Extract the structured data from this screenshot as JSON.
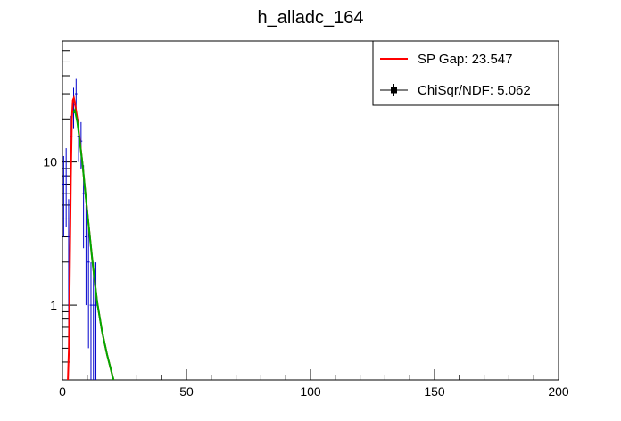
{
  "chart_data": {
    "type": "histogram",
    "title": "h_alladc_164",
    "xlabel": "",
    "ylabel": "",
    "xlim": [
      0,
      200
    ],
    "ylim": [
      0.3,
      70
    ],
    "yscale": "log",
    "x_ticks": [
      0,
      50,
      100,
      150,
      200
    ],
    "y_ticks": [
      1,
      10
    ],
    "grid": false,
    "legend": {
      "position": "top-right",
      "entries": [
        {
          "label": "SP Gap: 23.547",
          "style": "line",
          "color": "#ff0000"
        },
        {
          "label": "ChiSqr/NDF: 5.062",
          "style": "marker-line",
          "color": "#000000"
        }
      ]
    },
    "series": [
      {
        "style": "error-bars",
        "color": "#0000cc",
        "points": [
          {
            "x": 0.5,
            "y": 7,
            "err": 4
          },
          {
            "x": 1.5,
            "y": 8,
            "err": 4.5
          },
          {
            "x": 2.5,
            "y": 3,
            "err": 2.5
          },
          {
            "x": 3.5,
            "y": 15,
            "err": 6
          },
          {
            "x": 4.5,
            "y": 25,
            "err": 8
          },
          {
            "x": 5.5,
            "y": 30,
            "err": 8
          },
          {
            "x": 6.5,
            "y": 15,
            "err": 5
          },
          {
            "x": 7.5,
            "y": 14,
            "err": 5
          },
          {
            "x": 8.5,
            "y": 6,
            "err": 3.5
          },
          {
            "x": 9.5,
            "y": 3,
            "err": 2
          },
          {
            "x": 10.5,
            "y": 2,
            "err": 1.5
          },
          {
            "x": 11.5,
            "y": 1,
            "err": 0.99
          },
          {
            "x": 12.5,
            "y": 1,
            "err": 0.99
          },
          {
            "x": 13.5,
            "y": 1,
            "err": 0.99
          }
        ]
      },
      {
        "style": "line",
        "color": "#ff0000",
        "x": [
          2.2,
          2.6,
          3.0,
          3.4,
          3.8,
          4.2,
          4.6,
          5.0,
          6.0,
          8.0,
          10.0,
          12.0,
          14.0,
          16.0,
          18.0,
          20.6
        ],
        "y": [
          0.3,
          0.5,
          2.0,
          8.0,
          20.0,
          27.0,
          28.0,
          26.0,
          20.0,
          10.0,
          4.5,
          2.1,
          1.05,
          0.65,
          0.45,
          0.3
        ]
      },
      {
        "style": "line",
        "color": "#00aa00",
        "x": [
          4.5,
          5.0,
          6.0,
          8.0,
          10.0,
          12.0,
          14.0,
          16.0,
          18.0,
          20.6
        ],
        "y": [
          22.0,
          23.0,
          19.0,
          10.0,
          4.5,
          2.1,
          1.05,
          0.65,
          0.45,
          0.3
        ]
      }
    ]
  }
}
